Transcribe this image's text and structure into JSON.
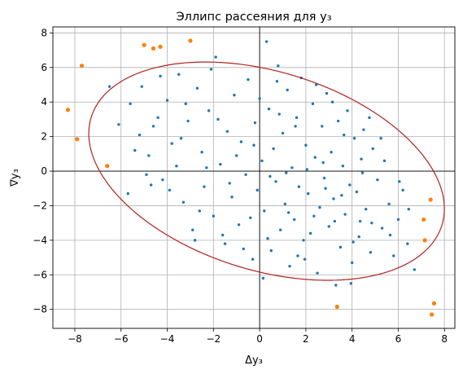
{
  "chart_data": {
    "type": "scatter",
    "title": "Эллипс рассеяния для y₃",
    "xlabel": "Δy₃",
    "ylabel": "∇y₃",
    "xlim": [
      -8.95,
      8.45
    ],
    "ylim": [
      -9.1,
      8.35
    ],
    "x_ticks": [
      -8,
      -6,
      -4,
      -2,
      0,
      2,
      4,
      6,
      8
    ],
    "y_ticks": [
      -8,
      -6,
      -4,
      -2,
      0,
      2,
      4,
      6,
      8
    ],
    "x_tick_labels": [
      "−8",
      "−6",
      "−4",
      "−2",
      "0",
      "2",
      "4",
      "6",
      "8"
    ],
    "y_tick_labels": [
      "−8",
      "−6",
      "−4",
      "−2",
      "0",
      "2",
      "4",
      "6",
      "8"
    ],
    "grid": true,
    "zero_lines": true,
    "colors": {
      "inside": "#1f77b4",
      "outside": "#ff7f0e",
      "ellipse": "#b22222"
    },
    "ellipse": {
      "center": [
        0.3,
        0.0
      ],
      "semi_major": 8.3,
      "semi_minor": 5.5,
      "angle_deg": -30
    },
    "series": [
      {
        "points": [
          [
            -6.1,
            2.7
          ],
          [
            -5.7,
            -1.3
          ],
          [
            -5.4,
            1.2
          ],
          [
            -5.1,
            4.9
          ],
          [
            -4.8,
            0.9
          ],
          [
            -4.6,
            2.6
          ],
          [
            -4.4,
            3.1
          ],
          [
            -4.2,
            -0.5
          ],
          [
            -4.0,
            4.1
          ],
          [
            -3.8,
            1.6
          ],
          [
            -3.6,
            0.3
          ],
          [
            -3.5,
            5.6
          ],
          [
            -3.3,
            -1.8
          ],
          [
            -3.1,
            2.9
          ],
          [
            -2.9,
            -3.4
          ],
          [
            -2.7,
            4.8
          ],
          [
            -2.5,
            1.1
          ],
          [
            -2.4,
            -0.9
          ],
          [
            -2.2,
            3.5
          ],
          [
            -2.0,
            -2.6
          ],
          [
            -1.9,
            6.6
          ],
          [
            -1.7,
            0.4
          ],
          [
            -1.5,
            -4.2
          ],
          [
            -1.4,
            2.3
          ],
          [
            -1.2,
            -1.5
          ],
          [
            -1.1,
            4.4
          ],
          [
            -0.9,
            -3.1
          ],
          [
            -0.8,
            1.7
          ],
          [
            -0.6,
            -0.2
          ],
          [
            -0.5,
            5.3
          ],
          [
            -0.3,
            -5.1
          ],
          [
            -0.2,
            2.8
          ],
          [
            -0.1,
            -1.1
          ],
          [
            0.1,
            0.6
          ],
          [
            0.2,
            -2.3
          ],
          [
            0.3,
            7.5
          ],
          [
            0.4,
            3.6
          ],
          [
            0.5,
            -4.6
          ],
          [
            0.6,
            1.3
          ],
          [
            0.7,
            -0.6
          ],
          [
            0.8,
            6.1
          ],
          [
            0.9,
            -3.4
          ],
          [
            1.0,
            2.2
          ],
          [
            1.1,
            -1.9
          ],
          [
            1.2,
            4.7
          ],
          [
            1.3,
            -5.5
          ],
          [
            1.4,
            0.2
          ],
          [
            1.5,
            -2.8
          ],
          [
            1.6,
            3.1
          ],
          [
            1.7,
            -0.9
          ],
          [
            1.8,
            5.4
          ],
          [
            1.9,
            -4.0
          ],
          [
            2.0,
            1.5
          ],
          [
            2.1,
            -1.3
          ],
          [
            2.2,
            -3.6
          ],
          [
            2.3,
            3.9
          ],
          [
            2.4,
            0.8
          ],
          [
            2.5,
            -5.9
          ],
          [
            2.6,
            -2.1
          ],
          [
            2.7,
            2.6
          ],
          [
            2.8,
            -0.4
          ],
          [
            2.9,
            4.5
          ],
          [
            3.0,
            -3.2
          ],
          [
            3.1,
            1.1
          ],
          [
            3.2,
            -1.6
          ],
          [
            3.3,
            -6.6
          ],
          [
            3.4,
            2.9
          ],
          [
            3.5,
            -4.4
          ],
          [
            3.6,
            0.3
          ],
          [
            3.7,
            -2.5
          ],
          [
            3.8,
            3.5
          ],
          [
            3.9,
            -0.8
          ],
          [
            4.0,
            -5.3
          ],
          [
            4.1,
            1.9
          ],
          [
            4.2,
            -1.2
          ],
          [
            4.3,
            -3.8
          ],
          [
            4.4,
            0.7
          ],
          [
            4.5,
            2.4
          ],
          [
            4.6,
            -2.2
          ],
          [
            4.8,
            -4.7
          ],
          [
            4.9,
            1.3
          ],
          [
            5.1,
            -0.5
          ],
          [
            5.3,
            -3.3
          ],
          [
            5.4,
            0.6
          ],
          [
            5.6,
            -1.9
          ],
          [
            5.8,
            -4.9
          ],
          [
            6.0,
            -2.8
          ],
          [
            6.2,
            -1.1
          ],
          [
            6.4,
            -4.2
          ],
          [
            6.7,
            -5.7
          ],
          [
            -5.6,
            3.9
          ],
          [
            -4.9,
            -0.2
          ],
          [
            -4.3,
            5.5
          ],
          [
            -3.9,
            -1.1
          ],
          [
            -3.2,
            3.9
          ],
          [
            -2.6,
            -2.3
          ],
          [
            -2.1,
            5.9
          ],
          [
            -1.6,
            -3.7
          ],
          [
            -1.0,
            0.9
          ],
          [
            -0.4,
            -2.7
          ],
          [
            0.0,
            4.2
          ],
          [
            0.15,
            -6.2
          ],
          [
            0.45,
            -0.3
          ],
          [
            0.85,
            3.3
          ],
          [
            1.25,
            -2.4
          ],
          [
            1.65,
            -4.9
          ],
          [
            2.05,
            0.1
          ],
          [
            2.45,
            5.0
          ],
          [
            2.85,
            -1.0
          ],
          [
            3.25,
            -2.9
          ],
          [
            3.65,
            2.1
          ],
          [
            4.05,
            -4.1
          ],
          [
            4.45,
            -0.1
          ],
          [
            4.85,
            -3.0
          ],
          [
            5.25,
            1.9
          ],
          [
            5.65,
            -3.7
          ],
          [
            6.05,
            -0.6
          ],
          [
            6.45,
            -2.2
          ],
          [
            -6.5,
            4.9
          ],
          [
            -5.2,
            2.1
          ],
          [
            -4.7,
            -0.8
          ],
          [
            -3.4,
            1.9
          ],
          [
            -2.8,
            -4.0
          ],
          [
            -2.3,
            0.2
          ],
          [
            -1.8,
            3.0
          ],
          [
            -1.3,
            -0.7
          ],
          [
            -0.7,
            -4.5
          ],
          [
            -0.25,
            1.5
          ],
          [
            0.35,
            -3.9
          ],
          [
            0.75,
            5.2
          ],
          [
            1.15,
            -0.1
          ],
          [
            1.55,
            2.6
          ],
          [
            1.95,
            -5.1
          ],
          [
            2.35,
            -2.6
          ],
          [
            2.75,
            0.5
          ],
          [
            3.15,
            4.0
          ],
          [
            3.55,
            -1.4
          ],
          [
            3.95,
            -6.5
          ],
          [
            4.35,
            -2.9
          ],
          [
            4.75,
            3.1
          ]
        ]
      },
      {
        "points": [
          [
            -8.3,
            3.55
          ],
          [
            -7.9,
            1.85
          ],
          [
            -7.7,
            6.1
          ],
          [
            -6.6,
            0.3
          ],
          [
            -5.0,
            7.3
          ],
          [
            -4.6,
            7.1
          ],
          [
            -4.3,
            7.2
          ],
          [
            -3.0,
            7.55
          ],
          [
            7.4,
            -1.65
          ],
          [
            7.1,
            -2.8
          ],
          [
            7.15,
            -4.0
          ],
          [
            7.55,
            -7.65
          ],
          [
            7.45,
            -8.3
          ],
          [
            3.35,
            -7.85
          ]
        ]
      }
    ]
  }
}
